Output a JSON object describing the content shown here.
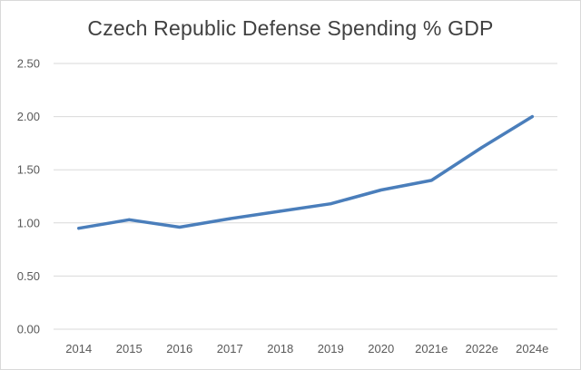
{
  "chart_data": {
    "type": "line",
    "title": "Czech Republic Defense Spending % GDP",
    "xlabel": "",
    "ylabel": "",
    "categories": [
      "2014",
      "2015",
      "2016",
      "2017",
      "2018",
      "2019",
      "2020",
      "2021e",
      "2022e",
      "2024e"
    ],
    "series": [
      {
        "values": [
          0.95,
          1.03,
          0.96,
          1.04,
          1.11,
          1.18,
          1.31,
          1.4,
          1.71,
          2.0
        ]
      }
    ],
    "ylim": [
      0,
      2.5
    ],
    "yticks": [
      "0.00",
      "0.50",
      "1.00",
      "1.50",
      "2.00",
      "2.50"
    ],
    "grid": true,
    "legend": "none",
    "colors": {
      "line": "#4a7ebb",
      "grid": "#d9d9d9"
    }
  }
}
